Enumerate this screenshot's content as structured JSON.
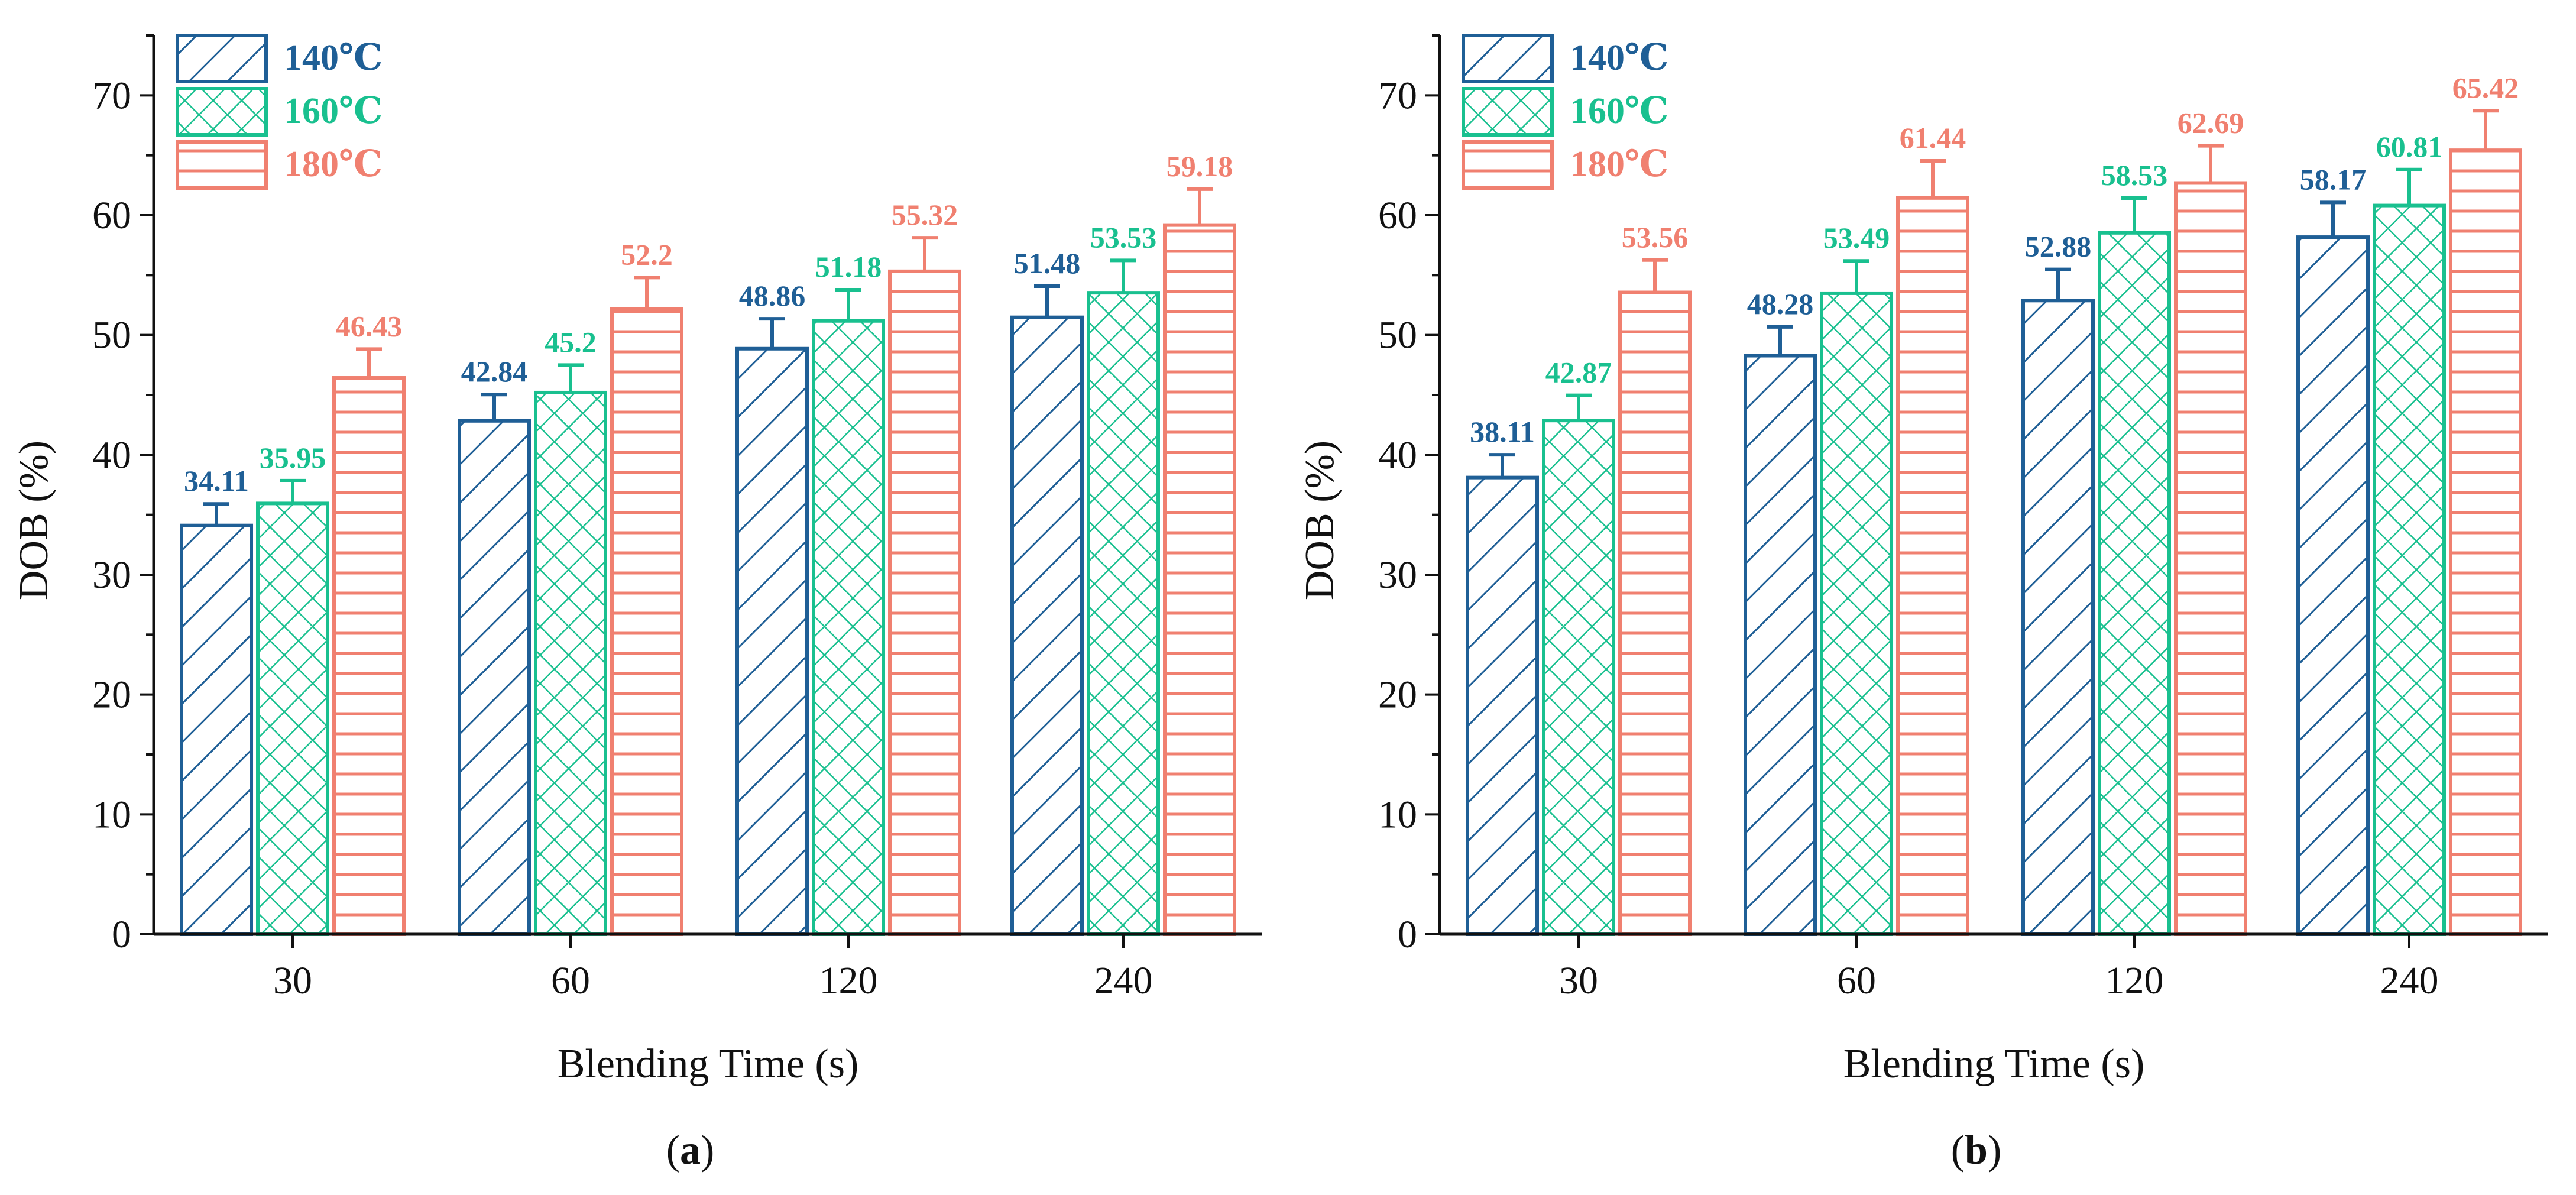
{
  "colors": {
    "c140": "#1f5f96",
    "c160": "#19c08f",
    "c180": "#f08070",
    "axis": "#111111"
  },
  "legend": [
    "140℃",
    "160℃",
    "180℃"
  ],
  "chart_data": [
    {
      "type": "bar",
      "panel": "a",
      "panel_label_open": "(",
      "panel_label_letter": "a",
      "panel_label_close": ")",
      "xlabel": "Blending Time (s)",
      "ylabel": "DOB (%)",
      "ylim": [
        0,
        75
      ],
      "yticks": [
        0,
        10,
        20,
        30,
        40,
        50,
        60,
        70
      ],
      "categories": [
        "30",
        "60",
        "120",
        "240"
      ],
      "series": [
        {
          "name": "140℃",
          "pattern": "diagonal",
          "values": [
            34.11,
            42.84,
            48.86,
            51.48
          ],
          "labels": [
            "34.11",
            "42.84",
            "48.86",
            "51.48"
          ],
          "errors": [
            1.8,
            2.2,
            2.5,
            2.6
          ]
        },
        {
          "name": "160℃",
          "pattern": "crosshatch",
          "values": [
            35.95,
            45.2,
            51.18,
            53.53
          ],
          "labels": [
            "35.95",
            "45.2",
            "51.18",
            "53.53"
          ],
          "errors": [
            1.9,
            2.3,
            2.6,
            2.7
          ]
        },
        {
          "name": "180℃",
          "pattern": "horizontal",
          "values": [
            46.43,
            52.2,
            55.32,
            59.18
          ],
          "labels": [
            "46.43",
            "52.2",
            "55.32",
            "59.18"
          ],
          "errors": [
            2.4,
            2.6,
            2.8,
            3.0
          ]
        }
      ]
    },
    {
      "type": "bar",
      "panel": "b",
      "panel_label_open": "(",
      "panel_label_letter": "b",
      "panel_label_close": ")",
      "xlabel": "Blending Time (s)",
      "ylabel": "DOB (%)",
      "ylim": [
        0,
        75
      ],
      "yticks": [
        0,
        10,
        20,
        30,
        40,
        50,
        60,
        70
      ],
      "categories": [
        "30",
        "60",
        "120",
        "240"
      ],
      "series": [
        {
          "name": "140℃",
          "pattern": "diagonal",
          "values": [
            38.11,
            48.28,
            52.88,
            58.17
          ],
          "labels": [
            "38.11",
            "48.28",
            "52.88",
            "58.17"
          ],
          "errors": [
            1.9,
            2.4,
            2.6,
            2.9
          ]
        },
        {
          "name": "160℃",
          "pattern": "crosshatch",
          "values": [
            42.87,
            53.49,
            58.53,
            60.81
          ],
          "labels": [
            "42.87",
            "53.49",
            "58.53",
            "60.81"
          ],
          "errors": [
            2.1,
            2.7,
            2.9,
            3.0
          ]
        },
        {
          "name": "180℃",
          "pattern": "horizontal",
          "values": [
            53.56,
            61.44,
            62.69,
            65.42
          ],
          "labels": [
            "53.56",
            "61.44",
            "62.69",
            "65.42"
          ],
          "errors": [
            2.7,
            3.1,
            3.1,
            3.3
          ]
        }
      ]
    }
  ]
}
